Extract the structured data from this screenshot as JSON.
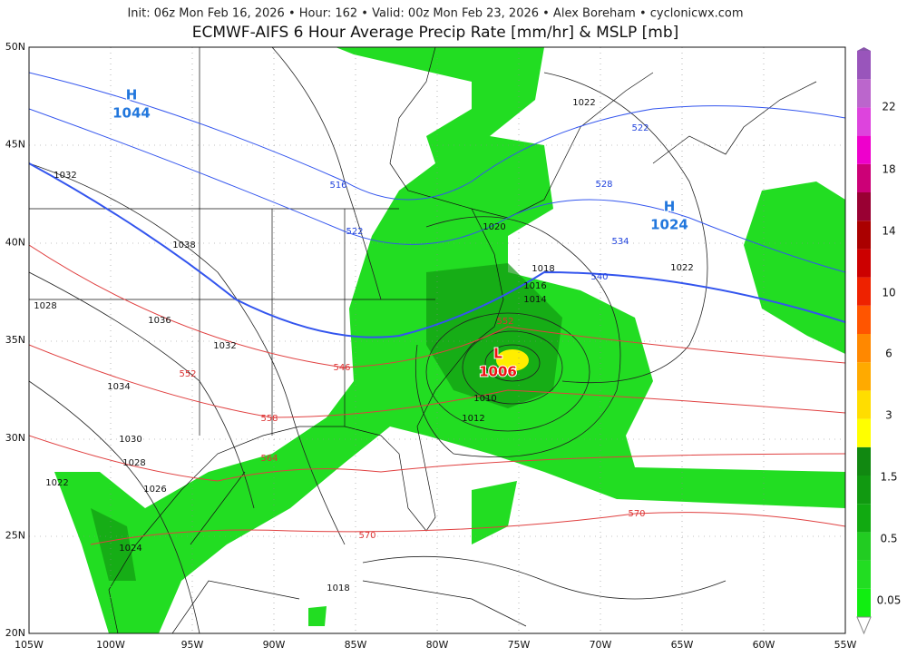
{
  "header": {
    "info_line": "Init: 06z Mon Feb 16, 2026  •  Hour: 162  •  Valid: 00z Mon Feb 23, 2026  •  Alex Boreham  •  cyclonicwx.com",
    "title": "ECMWF-AIFS 6 Hour Average Precip Rate [mm/hr] & MSLP [mb]"
  },
  "map": {
    "lon_labels": [
      "105W",
      "100W",
      "95W",
      "90W",
      "85W",
      "80W",
      "75W",
      "70W",
      "65W",
      "60W",
      "55W"
    ],
    "lat_labels": [
      "50N",
      "45N",
      "40N",
      "35N",
      "30N",
      "25N",
      "20N"
    ],
    "pressure_labels": [
      "1022",
      "1032",
      "1038",
      "1028",
      "1036",
      "1032",
      "1034",
      "1030",
      "1028",
      "1026",
      "1022",
      "1024",
      "1018",
      "1020",
      "1018",
      "1016",
      "1014",
      "1010",
      "1012",
      "1022"
    ],
    "thickness_blue_labels": [
      "516",
      "522",
      "522",
      "528",
      "534",
      "540"
    ],
    "thickness_red_labels": [
      "552",
      "546",
      "558",
      "564",
      "570",
      "570",
      "552"
    ],
    "centers": [
      {
        "letter": "H",
        "value": "1044"
      },
      {
        "letter": "H",
        "value": "1024"
      },
      {
        "letter": "L",
        "value": "1006"
      }
    ]
  },
  "colorbar": {
    "labels": [
      "0.05",
      "0.5",
      "1.5",
      "3",
      "6",
      "10",
      "14",
      "18",
      "22"
    ]
  }
}
